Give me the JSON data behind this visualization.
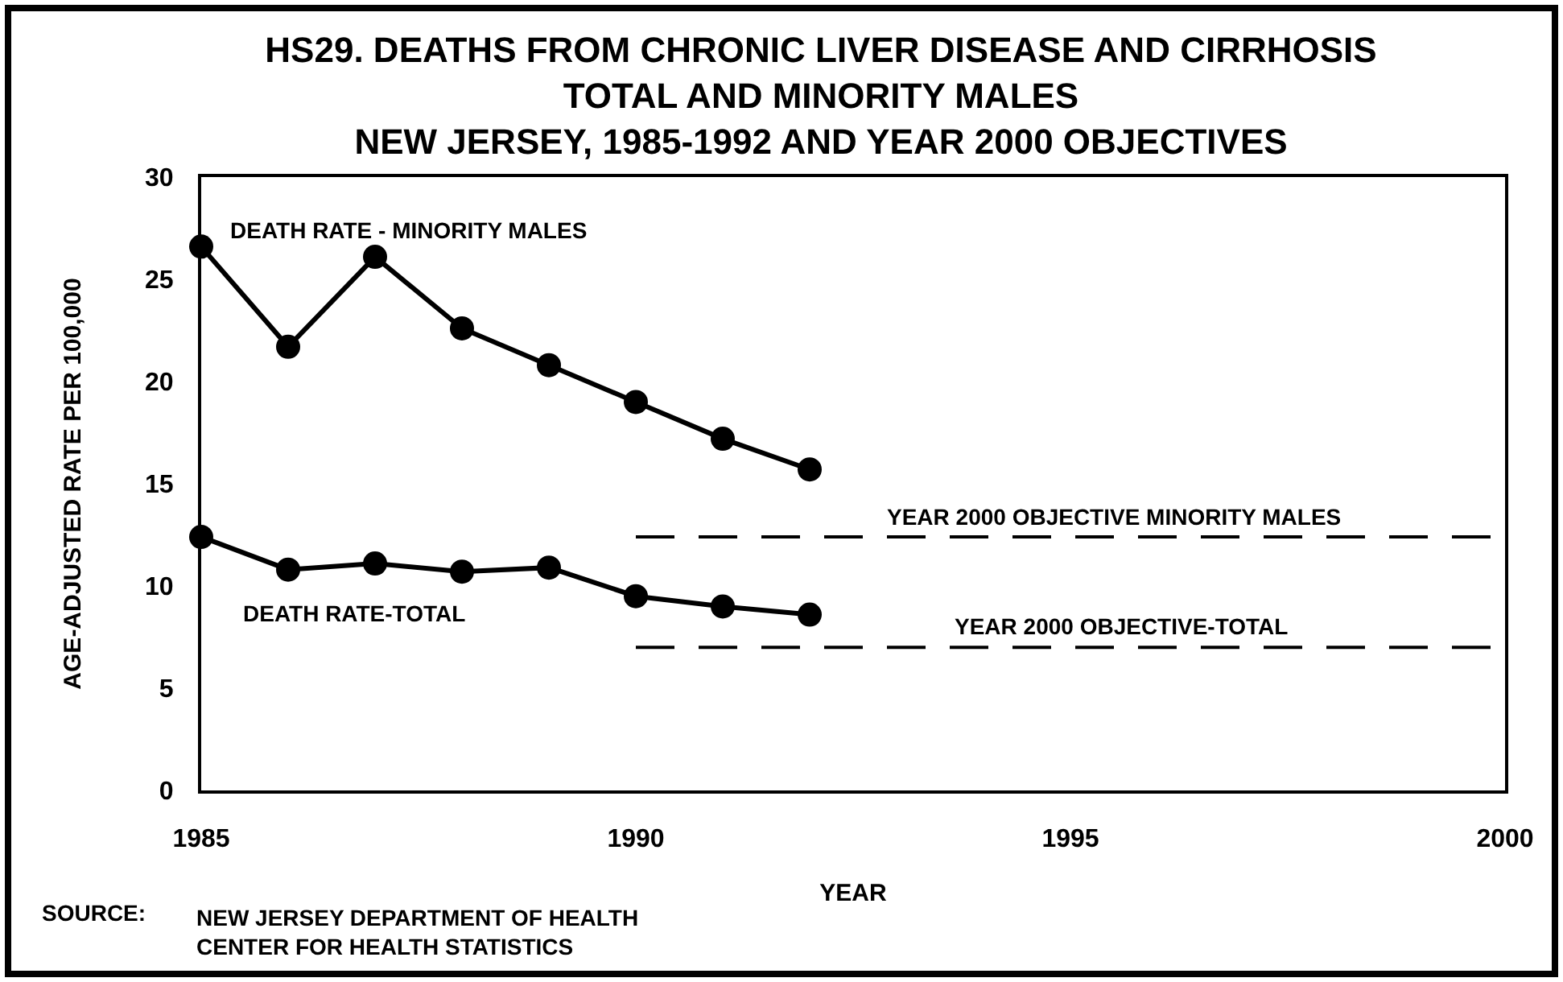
{
  "chart_data": {
    "type": "line",
    "title": "HS29. DEATHS FROM CHRONIC LIVER DISEASE AND CIRRHOSIS\nTOTAL AND MINORITY MALES\nNEW JERSEY, 1985-1992 AND YEAR 2000 OBJECTIVES",
    "xlabel": "YEAR",
    "ylabel": "AGE-ADJUSTED RATE PER 100,000",
    "x": [
      1985,
      1986,
      1987,
      1988,
      1989,
      1990,
      1991,
      1992,
      2000
    ],
    "series": [
      {
        "name": "DEATH RATE - MINORITY MALES",
        "color": "#000000",
        "values": [
          26.6,
          21.7,
          26.1,
          22.6,
          20.8,
          19.0,
          17.2,
          15.7,
          null
        ]
      },
      {
        "name": "DEATH RATE-TOTAL",
        "color": "#000000",
        "values": [
          12.4,
          10.8,
          11.1,
          10.7,
          10.9,
          9.5,
          9.0,
          8.6,
          null
        ]
      },
      {
        "name": "YEAR 2000 OBJECTIVE MINORITY MALES",
        "color": "#000000",
        "values": [
          null,
          null,
          null,
          null,
          null,
          12.4,
          12.4,
          12.4,
          12.4
        ],
        "marker": "none",
        "line_style": "dashed"
      },
      {
        "name": "YEAR 2000 OBJECTIVE-TOTAL",
        "color": "#000000",
        "values": [
          null,
          null,
          null,
          null,
          null,
          7.0,
          7.0,
          7.0,
          7.0
        ],
        "marker": "none",
        "line_style": "dashed"
      }
    ],
    "xlim": [
      1985,
      2000
    ],
    "xticks": [
      1985,
      1990,
      1995,
      2000
    ],
    "ylim": [
      0,
      30
    ],
    "yticks": [
      0,
      5,
      10,
      15,
      20,
      25,
      30
    ],
    "marker": "circle",
    "line_style": "solid",
    "annotations": [
      "SOURCE:",
      "NEW JERSEY DEPARTMENT OF HEALTH\nCENTER FOR HEALTH STATISTICS"
    ]
  }
}
